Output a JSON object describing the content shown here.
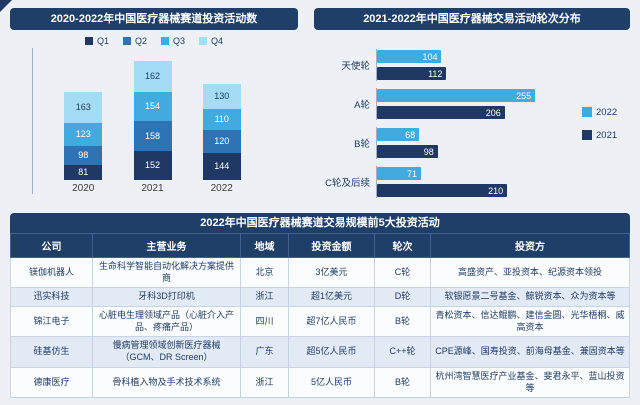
{
  "colors": {
    "background": "#edf1f6",
    "navy": "#1f3864",
    "title_bar": "#1f3f68",
    "light_blue": "#41aadf",
    "text_navy": "#1f3b63"
  },
  "chart_data": [
    {
      "type": "bar",
      "stacked": true,
      "title": "2020-2022年中国医疗器械赛道投资活动数",
      "categories": [
        "2020",
        "2021",
        "2022"
      ],
      "series": [
        {
          "name": "Q1",
          "color": "#1f3864",
          "label_color": "#ffffff",
          "values": [
            81,
            152,
            144
          ]
        },
        {
          "name": "Q2",
          "color": "#2e74b5",
          "label_color": "#ffffff",
          "values": [
            98,
            158,
            120
          ]
        },
        {
          "name": "Q3",
          "color": "#41aadf",
          "label_color": "#ffffff",
          "values": [
            123,
            154,
            110
          ]
        },
        {
          "name": "Q4",
          "color": "#a4dcf5",
          "label_color": "#1f3b63",
          "values": [
            163,
            162,
            130
          ]
        }
      ],
      "legend_position": "top",
      "ylabel": "",
      "xlabel": ""
    },
    {
      "type": "bar",
      "orientation": "horizontal",
      "title": "2021-2022年中国医疗器械交易活动轮次分布",
      "categories": [
        "天使轮",
        "A轮",
        "B轮",
        "C轮及后续"
      ],
      "series": [
        {
          "name": "2022",
          "color": "#41aadf",
          "label_color": "#ffffff",
          "values": [
            104,
            255,
            68,
            71
          ]
        },
        {
          "name": "2021",
          "color": "#1f3864",
          "label_color": "#ffffff",
          "values": [
            112,
            206,
            98,
            210
          ]
        }
      ],
      "legend_position": "right",
      "xlim": [
        0,
        260
      ]
    }
  ],
  "table": {
    "title": "2022年中国医疗器械赛道交易规模前5大投资活动",
    "headers": [
      "公司",
      "主营业务",
      "地域",
      "投资金额",
      "轮次",
      "投资方"
    ],
    "rows": [
      [
        "镁伽机器人",
        "生命科学智能自动化解决方案提供商",
        "北京",
        "3亿美元",
        "C轮",
        "高盛资产、亚投资本、纪源资本领投"
      ],
      [
        "迅实科技",
        "牙科3D打印机",
        "浙江",
        "超1亿美元",
        "D轮",
        "软银愿景二号基金、鲸锐资本、众为资本等"
      ],
      [
        "锦江电子",
        "心脏电生理领域产品（心脏介入产品、疼痛产品）",
        "四川",
        "超7亿人民币",
        "B轮",
        "青松资本、信达鲲鹏、建信金圆、光华梧桐、威高资本"
      ],
      [
        "硅基仿生",
        "慢病管理领域创新医疗器械（GCM、DR Screen）",
        "广东",
        "超5亿人民币",
        "C++轮",
        "CPE源峰、国寿投资、前海母基金、兼固资本等"
      ],
      [
        "德康医疗",
        "骨科植入物及手术技术系统",
        "浙江",
        "5亿人民币",
        "B轮",
        "杭州湾智慧医疗产业基金、斐君永平、蓝山投资等"
      ]
    ]
  }
}
